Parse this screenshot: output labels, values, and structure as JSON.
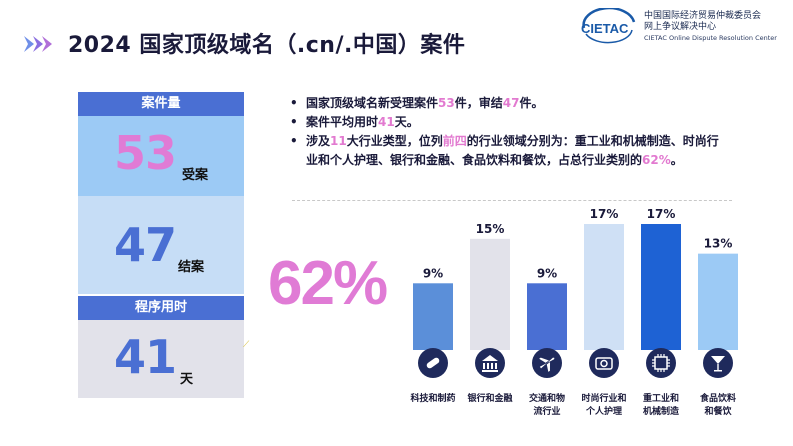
{
  "header": {
    "title": "2024 国家顶级域名（.cn/.中国）案件",
    "logo_abbr": "CIETAC",
    "logo_line1": "中国国际经济贸易仲裁委员会",
    "logo_line2": "网上争议解决中心",
    "logo_line3": "CIETAC Online Dispute Resolution Center"
  },
  "stats": {
    "case_header": "案件量",
    "filed_num": "53",
    "filed_unit": "受案",
    "closed_num": "47",
    "closed_unit": "结案",
    "time_header": "程序用时",
    "time_num": "41",
    "time_unit": "天"
  },
  "bullets": {
    "b1_a": "国家顶级域名新受理案件",
    "b1_n1": "53",
    "b1_b": "件，审结",
    "b1_n2": "47",
    "b1_c": "件。",
    "b2_a": "案件平均用时",
    "b2_n": "41",
    "b2_b": "天。",
    "b3_a": "涉及",
    "b3_n": "11",
    "b3_b": "大行业类型，位列",
    "b3_hl": "前四",
    "b3_c": "的行业领域分别为：重工业和机械制造、时尚行业和个人护理、银行和金融、食品饮料和餐饮，占总行业类别的",
    "b3_pct": "62%",
    "b3_d": "。"
  },
  "big_percent": "62%",
  "colors": {
    "accent_pink": "#e07bd5",
    "header_blue": "#4a6fd3",
    "icon_navy": "#1f2a5c"
  },
  "chart_data": {
    "type": "bar",
    "categories": [
      "科技和制药",
      "银行和金融",
      "交通和物流行业",
      "时尚行业和个人护理",
      "重工业和机械制造",
      "食品饮料和餐饮"
    ],
    "category_lines": [
      [
        "科技和制药"
      ],
      [
        "银行和金融"
      ],
      [
        "交通和物",
        "流行业"
      ],
      [
        "时尚行业和",
        "个人护理"
      ],
      [
        "重工业和",
        "机械制造"
      ],
      [
        "食品饮料",
        "和餐饮"
      ]
    ],
    "values": [
      9,
      15,
      9,
      17,
      17,
      13
    ],
    "value_labels": [
      "9%",
      "15%",
      "9%",
      "17%",
      "17%",
      "13%"
    ],
    "bar_colors": [
      "#5b8fd9",
      "#e2e2ea",
      "#4a6fd3",
      "#cfe0f5",
      "#1e62d4",
      "#9ccaf5"
    ],
    "icons": [
      "pill-icon",
      "bank-building-icon",
      "airplane-icon",
      "camera-icon",
      "chip-icon",
      "cocktail-icon"
    ],
    "ylim": [
      0,
      17
    ]
  }
}
